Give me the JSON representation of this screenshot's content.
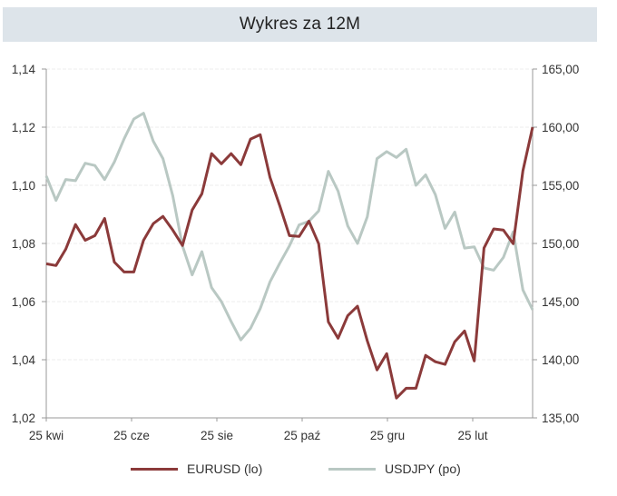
{
  "header": {
    "title": "Wykres za 12M"
  },
  "colors": {
    "eurusd": "#8b3a3a",
    "usdjpy": "#b9c8c3",
    "title_bg": "#dde4ea",
    "axis": "#999999",
    "grid": "#ececec"
  },
  "legend": {
    "items": [
      {
        "label": "EURUSD (lo)",
        "color": "#8b3a3a"
      },
      {
        "label": "USDJPY (po)",
        "color": "#b9c8c3"
      }
    ]
  },
  "chart_data": {
    "type": "line",
    "title": "Wykres za 12M",
    "xlabel": "",
    "ylabel_left": "EURUSD",
    "ylabel_right": "USDJPY",
    "x_ticks": [
      "25 kwi",
      "25 cze",
      "25 sie",
      "25 paź",
      "25 gru",
      "25 lut"
    ],
    "y_left_ticks": [
      "1,14",
      "1,12",
      "1,10",
      "1,08",
      "1,06",
      "1,04",
      "1,02"
    ],
    "y_right_ticks": [
      "165,00",
      "160,00",
      "155,00",
      "150,00",
      "145,00",
      "140,00",
      "135,00"
    ],
    "ylim_left": [
      1.02,
      1.14
    ],
    "ylim_right": [
      135,
      165
    ],
    "grid": true,
    "legend_position": "bottom",
    "series": [
      {
        "name": "EURUSD (lo)",
        "axis": "left",
        "values": [
          1.073,
          1.0724,
          1.078,
          1.0865,
          1.0811,
          1.0827,
          1.0886,
          1.0736,
          1.0702,
          1.0702,
          1.0811,
          1.0868,
          1.0893,
          1.0846,
          1.0793,
          1.0915,
          1.0971,
          1.1109,
          1.1074,
          1.1109,
          1.1071,
          1.1159,
          1.1174,
          1.1027,
          1.093,
          1.0827,
          1.0824,
          1.0877,
          1.0799,
          1.053,
          1.0474,
          1.0552,
          1.0584,
          1.0465,
          1.0365,
          1.0421,
          1.0268,
          1.0302,
          1.0302,
          1.0415,
          1.0393,
          1.0384,
          1.0462,
          1.0499,
          1.0396,
          1.0784,
          1.085,
          1.0846,
          1.0799,
          1.105,
          1.12
        ]
      },
      {
        "name": "USDJPY (po)",
        "axis": "right",
        "values": [
          155.8,
          153.7,
          155.5,
          155.4,
          156.9,
          156.7,
          155.5,
          157.0,
          159.0,
          160.7,
          161.2,
          158.8,
          157.3,
          154.1,
          149.8,
          147.3,
          149.3,
          146.2,
          145.0,
          143.3,
          141.7,
          142.7,
          144.4,
          146.7,
          148.3,
          149.8,
          151.6,
          151.9,
          152.8,
          156.2,
          154.5,
          151.5,
          150.0,
          152.3,
          157.3,
          157.9,
          157.4,
          158.1,
          155.0,
          155.9,
          154.2,
          151.3,
          152.7,
          149.6,
          149.7,
          147.9,
          147.7,
          148.8,
          151.0,
          146.0,
          144.3
        ]
      }
    ]
  }
}
